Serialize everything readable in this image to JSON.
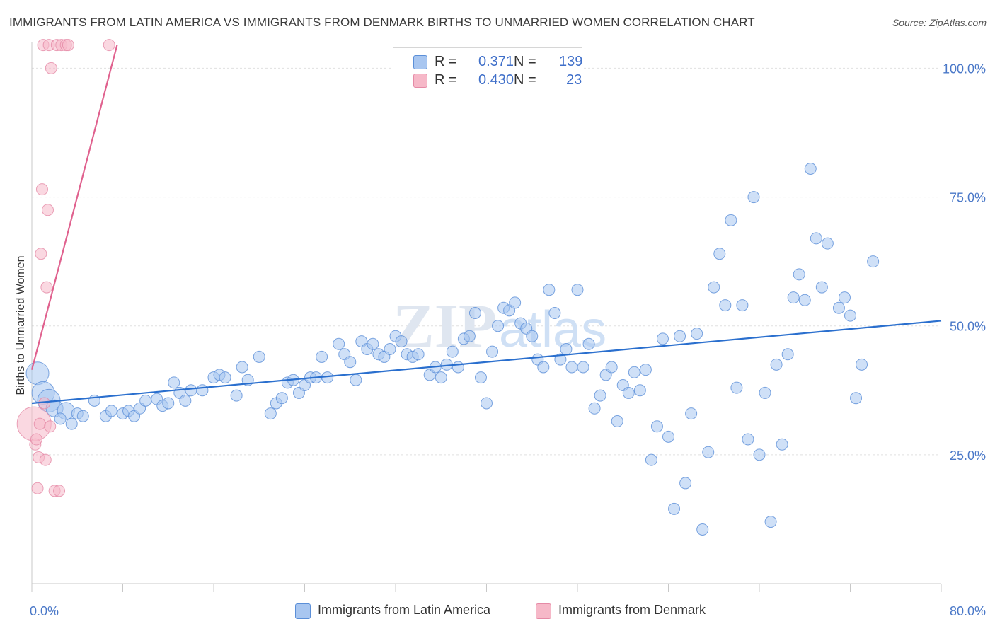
{
  "title": "IMMIGRANTS FROM LATIN AMERICA VS IMMIGRANTS FROM DENMARK BIRTHS TO UNMARRIED WOMEN CORRELATION CHART",
  "source": "Source: ZipAtlas.com",
  "watermark": "ZIPatlas",
  "legend": {
    "r_label": "R =",
    "n_label": "N =",
    "rows": [
      {
        "r": "0.371",
        "n": "139",
        "color": "#a8c6f0"
      },
      {
        "r": "0.430",
        "n": "23",
        "color": "#f6b8c8"
      }
    ]
  },
  "colors": {
    "blue_fill": "#a8c6f0",
    "blue_stroke": "#5b8fd8",
    "blue_line": "#2a6fce",
    "pink_fill": "#f6b8c8",
    "pink_stroke": "#e58aa6",
    "pink_line": "#e0618e",
    "tick_text": "#4a78c8",
    "grid": "#e0e0e0"
  },
  "chart_data": {
    "type": "scatter",
    "title": "IMMIGRANTS FROM LATIN AMERICA VS IMMIGRANTS FROM DENMARK BIRTHS TO UNMARRIED WOMEN CORRELATION CHART",
    "xlabel": "",
    "ylabel": "Births to Unmarried Women",
    "xlim": [
      0,
      80
    ],
    "ylim": [
      0,
      105
    ],
    "x_tick_labels": [
      "0.0%",
      "80.0%"
    ],
    "y_tick_labels": [
      "25.0%",
      "50.0%",
      "75.0%",
      "100.0%"
    ],
    "y_ticks": [
      25,
      50,
      75,
      100
    ],
    "grid": true,
    "legend_position": "top-center",
    "series": [
      {
        "name": "Immigrants from Latin America",
        "color": "#a8c6f0",
        "trend": {
          "x": [
            0,
            80
          ],
          "y": [
            35.0,
            51.0
          ]
        },
        "points": [
          [
            0.5,
            40.8,
            2
          ],
          [
            1.0,
            37.0,
            2
          ],
          [
            1.5,
            35.5,
            2
          ],
          [
            2.0,
            34.0,
            1.5
          ],
          [
            3.0,
            33.5,
            1.5
          ],
          [
            4.0,
            33.0,
            1
          ],
          [
            2.5,
            32.0,
            1
          ],
          [
            3.5,
            31.0,
            1
          ],
          [
            4.5,
            32.5,
            1
          ],
          [
            5.5,
            35.5,
            1
          ],
          [
            6.5,
            32.5,
            1
          ],
          [
            7.0,
            33.5,
            1
          ],
          [
            8.0,
            33.0,
            1
          ],
          [
            8.5,
            33.5,
            1
          ],
          [
            9.0,
            32.5,
            1
          ],
          [
            9.5,
            34.0,
            1
          ],
          [
            10.0,
            35.5,
            1
          ],
          [
            11.0,
            35.8,
            1
          ],
          [
            11.5,
            34.5,
            1
          ],
          [
            12.0,
            35.0,
            1
          ],
          [
            12.5,
            39.0,
            1
          ],
          [
            13.0,
            37.0,
            1
          ],
          [
            13.5,
            35.5,
            1
          ],
          [
            14.0,
            37.5,
            1
          ],
          [
            15.0,
            37.5,
            1
          ],
          [
            16.0,
            40.0,
            1
          ],
          [
            16.5,
            40.5,
            1
          ],
          [
            17.0,
            40.0,
            1
          ],
          [
            18.0,
            36.5,
            1
          ],
          [
            18.5,
            42.0,
            1
          ],
          [
            19.0,
            39.5,
            1
          ],
          [
            20.0,
            44.0,
            1
          ],
          [
            21.0,
            33.0,
            1
          ],
          [
            21.5,
            35.0,
            1
          ],
          [
            22.0,
            36.0,
            1
          ],
          [
            22.5,
            39.0,
            1
          ],
          [
            23.0,
            39.5,
            1
          ],
          [
            23.5,
            37.0,
            1
          ],
          [
            24.0,
            38.5,
            1
          ],
          [
            24.5,
            40.0,
            1
          ],
          [
            25.0,
            40.0,
            1
          ],
          [
            25.5,
            44.0,
            1
          ],
          [
            26.0,
            40.0,
            1
          ],
          [
            27.0,
            46.5,
            1
          ],
          [
            27.5,
            44.5,
            1
          ],
          [
            28.0,
            43.0,
            1
          ],
          [
            28.5,
            39.5,
            1
          ],
          [
            29.0,
            47.0,
            1
          ],
          [
            29.5,
            45.5,
            1
          ],
          [
            30.0,
            46.5,
            1
          ],
          [
            30.5,
            44.5,
            1
          ],
          [
            31.0,
            44.0,
            1
          ],
          [
            31.5,
            45.5,
            1
          ],
          [
            32.0,
            48.0,
            1
          ],
          [
            32.5,
            47.0,
            1
          ],
          [
            33.0,
            44.5,
            1
          ],
          [
            33.5,
            44.0,
            1
          ],
          [
            34.0,
            44.5,
            1
          ],
          [
            35.0,
            40.5,
            1
          ],
          [
            35.5,
            42.0,
            1
          ],
          [
            36.0,
            40.0,
            1
          ],
          [
            36.5,
            42.5,
            1
          ],
          [
            37.0,
            45.0,
            1
          ],
          [
            37.5,
            42.0,
            1
          ],
          [
            38.0,
            47.5,
            1
          ],
          [
            38.5,
            48.0,
            1
          ],
          [
            39.0,
            52.5,
            1
          ],
          [
            39.5,
            40.0,
            1
          ],
          [
            40.0,
            35.0,
            1
          ],
          [
            40.5,
            45.0,
            1
          ],
          [
            41.0,
            50.0,
            1
          ],
          [
            41.5,
            53.5,
            1
          ],
          [
            42.0,
            53.0,
            1
          ],
          [
            42.5,
            54.5,
            1
          ],
          [
            43.0,
            50.5,
            1
          ],
          [
            43.5,
            49.5,
            1
          ],
          [
            44.0,
            48.0,
            1
          ],
          [
            44.5,
            43.5,
            1
          ],
          [
            45.0,
            42.0,
            1
          ],
          [
            45.5,
            57.0,
            1
          ],
          [
            46.0,
            52.5,
            1
          ],
          [
            46.5,
            43.5,
            1
          ],
          [
            47.0,
            45.5,
            1
          ],
          [
            47.5,
            42.0,
            1
          ],
          [
            48.0,
            57.0,
            1
          ],
          [
            48.5,
            42.0,
            1
          ],
          [
            49.0,
            46.5,
            1
          ],
          [
            49.5,
            34.0,
            1
          ],
          [
            50.0,
            36.5,
            1
          ],
          [
            50.5,
            40.5,
            1
          ],
          [
            51.0,
            42.0,
            1
          ],
          [
            51.5,
            31.5,
            1
          ],
          [
            52.0,
            38.5,
            1
          ],
          [
            52.5,
            37.0,
            1
          ],
          [
            53.0,
            41.0,
            1
          ],
          [
            53.5,
            37.5,
            1
          ],
          [
            54.0,
            41.5,
            1
          ],
          [
            54.5,
            24.0,
            1
          ],
          [
            55.0,
            30.5,
            1
          ],
          [
            55.5,
            47.5,
            1
          ],
          [
            56.0,
            28.5,
            1
          ],
          [
            56.5,
            14.5,
            1
          ],
          [
            57.0,
            48.0,
            1
          ],
          [
            57.5,
            19.5,
            1
          ],
          [
            58.0,
            33.0,
            1
          ],
          [
            58.5,
            48.5,
            1
          ],
          [
            59.0,
            10.5,
            1
          ],
          [
            59.5,
            25.5,
            1
          ],
          [
            60.0,
            57.5,
            1
          ],
          [
            60.5,
            64.0,
            1
          ],
          [
            61.0,
            54.0,
            1
          ],
          [
            61.5,
            70.5,
            1
          ],
          [
            62.0,
            38.0,
            1
          ],
          [
            62.5,
            54.0,
            1
          ],
          [
            63.0,
            28.0,
            1
          ],
          [
            63.5,
            75.0,
            1
          ],
          [
            64.0,
            25.0,
            1
          ],
          [
            64.5,
            37.0,
            1
          ],
          [
            65.0,
            12.0,
            1
          ],
          [
            65.5,
            42.5,
            1
          ],
          [
            66.0,
            27.0,
            1
          ],
          [
            66.5,
            44.5,
            1
          ],
          [
            67.0,
            55.5,
            1
          ],
          [
            67.5,
            60.0,
            1
          ],
          [
            68.0,
            55.0,
            1
          ],
          [
            68.5,
            80.5,
            1
          ],
          [
            69.0,
            67.0,
            1
          ],
          [
            69.5,
            57.5,
            1
          ],
          [
            70.0,
            66.0,
            1
          ],
          [
            71.0,
            53.5,
            1
          ],
          [
            71.5,
            55.5,
            1
          ],
          [
            72.0,
            52.0,
            1
          ],
          [
            72.5,
            36.0,
            1
          ],
          [
            73.0,
            42.5,
            1
          ],
          [
            74.0,
            62.5,
            1
          ]
        ]
      },
      {
        "name": "Immigrants from Denmark",
        "color": "#f6b8c8",
        "trend": {
          "x": [
            0,
            7.5
          ],
          "y": [
            41.5,
            104.5
          ]
        },
        "points": [
          [
            0.2,
            31.0,
            3
          ],
          [
            0.3,
            27.0,
            1
          ],
          [
            0.4,
            28.0,
            1
          ],
          [
            0.5,
            18.5,
            1
          ],
          [
            0.6,
            24.5,
            1
          ],
          [
            0.7,
            31.0,
            1
          ],
          [
            0.8,
            64.0,
            1
          ],
          [
            0.9,
            76.5,
            1
          ],
          [
            1.0,
            104.5,
            1
          ],
          [
            1.1,
            35.0,
            1
          ],
          [
            1.2,
            24.0,
            1
          ],
          [
            1.3,
            57.5,
            1
          ],
          [
            1.4,
            72.5,
            1
          ],
          [
            1.5,
            104.5,
            1
          ],
          [
            1.6,
            30.5,
            1
          ],
          [
            1.7,
            100.0,
            1
          ],
          [
            2.0,
            18.0,
            1
          ],
          [
            2.2,
            104.5,
            1
          ],
          [
            2.4,
            18.0,
            1
          ],
          [
            2.6,
            104.5,
            1
          ],
          [
            3.0,
            104.5,
            1
          ],
          [
            3.2,
            104.5,
            1
          ],
          [
            6.8,
            104.5,
            1
          ]
        ]
      }
    ]
  },
  "bottom_legend": [
    "Immigrants from Latin America",
    "Immigrants from Denmark"
  ]
}
